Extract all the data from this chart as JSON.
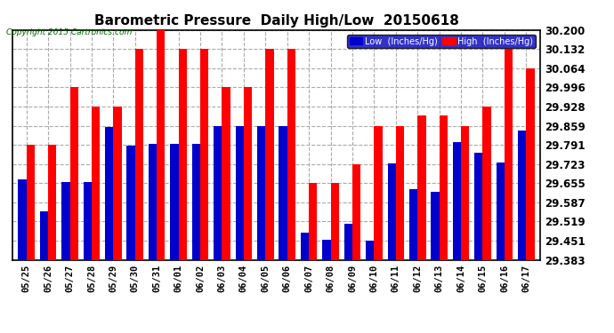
{
  "title": "Barometric Pressure  Daily High/Low  20150618",
  "copyright": "Copyright 2015 Cartronics.com",
  "dates": [
    "05/25",
    "05/26",
    "05/27",
    "05/28",
    "05/29",
    "05/30",
    "05/31",
    "06/01",
    "06/02",
    "06/03",
    "06/04",
    "06/05",
    "06/06",
    "06/07",
    "06/08",
    "06/09",
    "06/10",
    "06/11",
    "06/12",
    "06/13",
    "06/14",
    "06/15",
    "06/16",
    "06/17"
  ],
  "low": [
    29.67,
    29.555,
    29.66,
    29.66,
    29.855,
    29.79,
    29.795,
    29.795,
    29.795,
    29.859,
    29.859,
    29.859,
    29.859,
    29.478,
    29.455,
    29.51,
    29.452,
    29.725,
    29.635,
    29.625,
    29.8,
    29.762,
    29.73,
    29.841
  ],
  "high": [
    29.791,
    29.791,
    29.996,
    29.928,
    29.928,
    30.132,
    30.2,
    30.132,
    30.132,
    29.996,
    29.996,
    30.132,
    30.132,
    29.655,
    29.655,
    29.723,
    29.859,
    29.859,
    29.896,
    29.896,
    29.859,
    29.928,
    30.132,
    30.064
  ],
  "ymin": 29.383,
  "ymax": 30.2,
  "yticks": [
    29.383,
    29.451,
    29.519,
    29.587,
    29.655,
    29.723,
    29.791,
    29.859,
    29.928,
    29.996,
    30.064,
    30.132,
    30.2
  ],
  "bar_width": 0.38,
  "low_color": "#0000cc",
  "high_color": "#ff0000",
  "bg_color": "#ffffff",
  "grid_color": "#aaaaaa",
  "title_fontsize": 11,
  "legend_low": "Low  (Inches/Hg)",
  "legend_high": "High  (Inches/Hg)"
}
